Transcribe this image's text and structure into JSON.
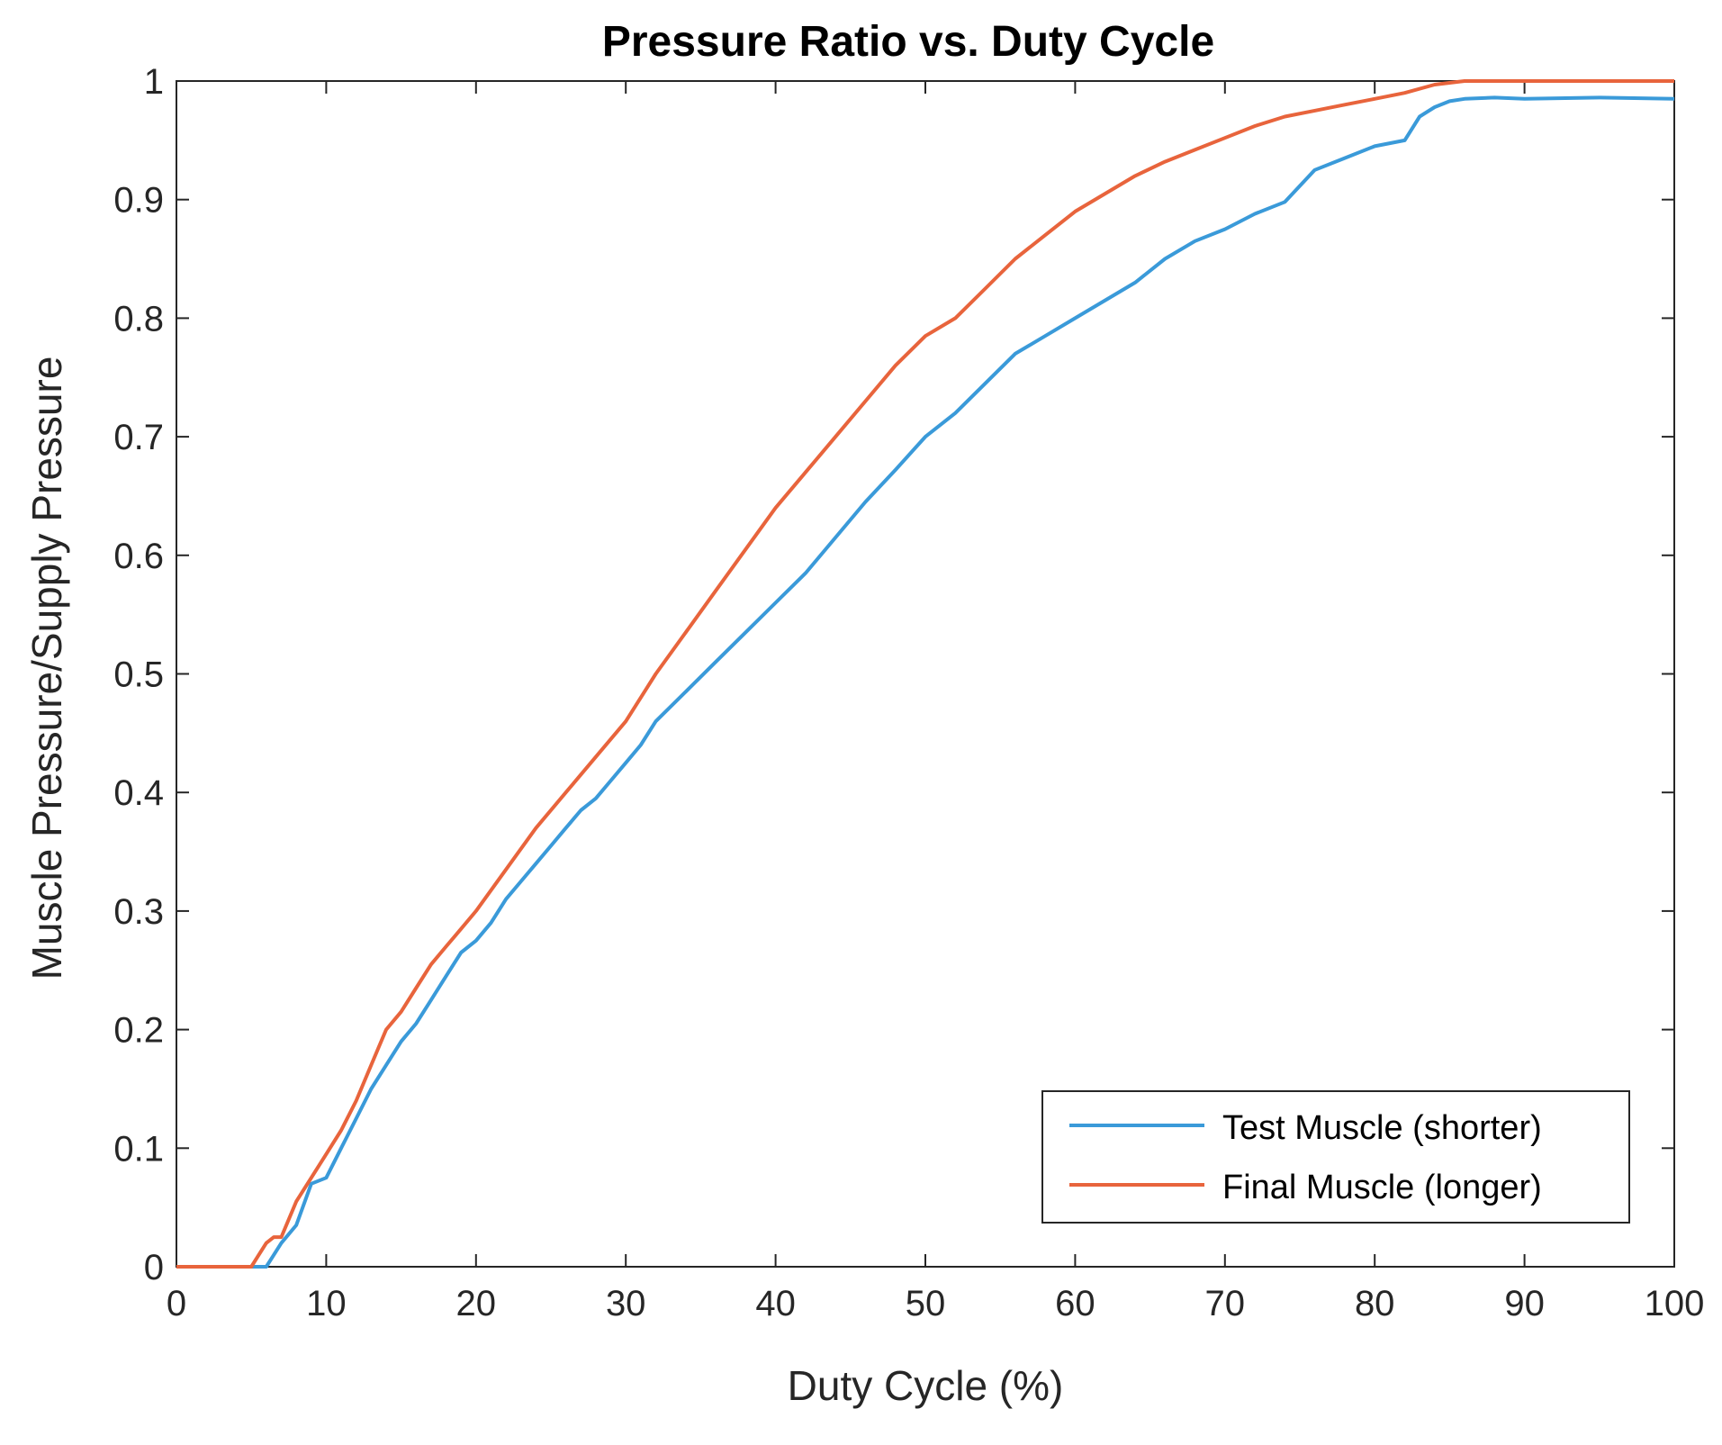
{
  "chart_data": {
    "type": "line",
    "title": "Pressure Ratio vs. Duty Cycle",
    "xlabel": "Duty Cycle (%)",
    "ylabel": "Muscle Pressure/Supply Pressure",
    "xlim": [
      0,
      100
    ],
    "ylim": [
      0,
      1
    ],
    "xticks": [
      0,
      10,
      20,
      30,
      40,
      50,
      60,
      70,
      80,
      90,
      100
    ],
    "yticks": [
      0,
      0.1,
      0.2,
      0.3,
      0.4,
      0.5,
      0.6,
      0.7,
      0.8,
      0.9,
      1
    ],
    "xtick_labels": [
      "0",
      "10",
      "20",
      "30",
      "40",
      "50",
      "60",
      "70",
      "80",
      "90",
      "100"
    ],
    "ytick_labels": [
      "0",
      "0.1",
      "0.2",
      "0.3",
      "0.4",
      "0.5",
      "0.6",
      "0.7",
      "0.8",
      "0.9",
      "1"
    ],
    "grid": false,
    "legend_position": "bottom-right",
    "series": [
      {
        "name": "Test Muscle (shorter)",
        "color": "#3a9ad9",
        "x": [
          0,
          5,
          6,
          6.5,
          7,
          8,
          9,
          10,
          11,
          12,
          13,
          14,
          15,
          16,
          17,
          18,
          19,
          20,
          21,
          22,
          23,
          24,
          25,
          26,
          27,
          28,
          29,
          30,
          31,
          32,
          34,
          36,
          38,
          40,
          42,
          44,
          46,
          48,
          50,
          52,
          54,
          56,
          58,
          60,
          62,
          64,
          66,
          68,
          70,
          72,
          74,
          76,
          78,
          80,
          82,
          83,
          84,
          85,
          86,
          88,
          90,
          95,
          100
        ],
        "y": [
          0,
          0,
          0,
          0.01,
          0.02,
          0.035,
          0.07,
          0.075,
          0.1,
          0.125,
          0.15,
          0.17,
          0.19,
          0.205,
          0.225,
          0.245,
          0.265,
          0.275,
          0.29,
          0.31,
          0.325,
          0.34,
          0.355,
          0.37,
          0.385,
          0.395,
          0.41,
          0.425,
          0.44,
          0.46,
          0.485,
          0.51,
          0.535,
          0.56,
          0.585,
          0.615,
          0.645,
          0.672,
          0.7,
          0.72,
          0.745,
          0.77,
          0.785,
          0.8,
          0.815,
          0.83,
          0.85,
          0.865,
          0.875,
          0.888,
          0.898,
          0.925,
          0.935,
          0.945,
          0.95,
          0.97,
          0.978,
          0.983,
          0.985,
          0.986,
          0.985,
          0.986,
          0.985
        ]
      },
      {
        "name": "Final Muscle (longer)",
        "color": "#e8643c",
        "x": [
          0,
          5,
          5.5,
          6,
          6.5,
          7,
          8,
          9,
          10,
          11,
          12,
          13,
          14,
          15,
          16,
          17,
          18,
          19,
          20,
          22,
          24,
          26,
          28,
          30,
          32,
          34,
          36,
          38,
          40,
          42,
          44,
          46,
          48,
          50,
          52,
          54,
          56,
          58,
          60,
          62,
          64,
          66,
          68,
          70,
          72,
          74,
          76,
          78,
          80,
          82,
          84,
          86,
          88,
          90,
          95,
          100
        ],
        "y": [
          0,
          0,
          0.01,
          0.02,
          0.025,
          0.025,
          0.055,
          0.075,
          0.095,
          0.115,
          0.14,
          0.17,
          0.2,
          0.215,
          0.235,
          0.255,
          0.27,
          0.285,
          0.3,
          0.335,
          0.37,
          0.4,
          0.43,
          0.46,
          0.5,
          0.535,
          0.57,
          0.605,
          0.64,
          0.67,
          0.7,
          0.73,
          0.76,
          0.785,
          0.8,
          0.825,
          0.85,
          0.87,
          0.89,
          0.905,
          0.92,
          0.932,
          0.942,
          0.952,
          0.962,
          0.97,
          0.975,
          0.98,
          0.985,
          0.99,
          0.997,
          1,
          1,
          1,
          1,
          1
        ]
      }
    ]
  }
}
